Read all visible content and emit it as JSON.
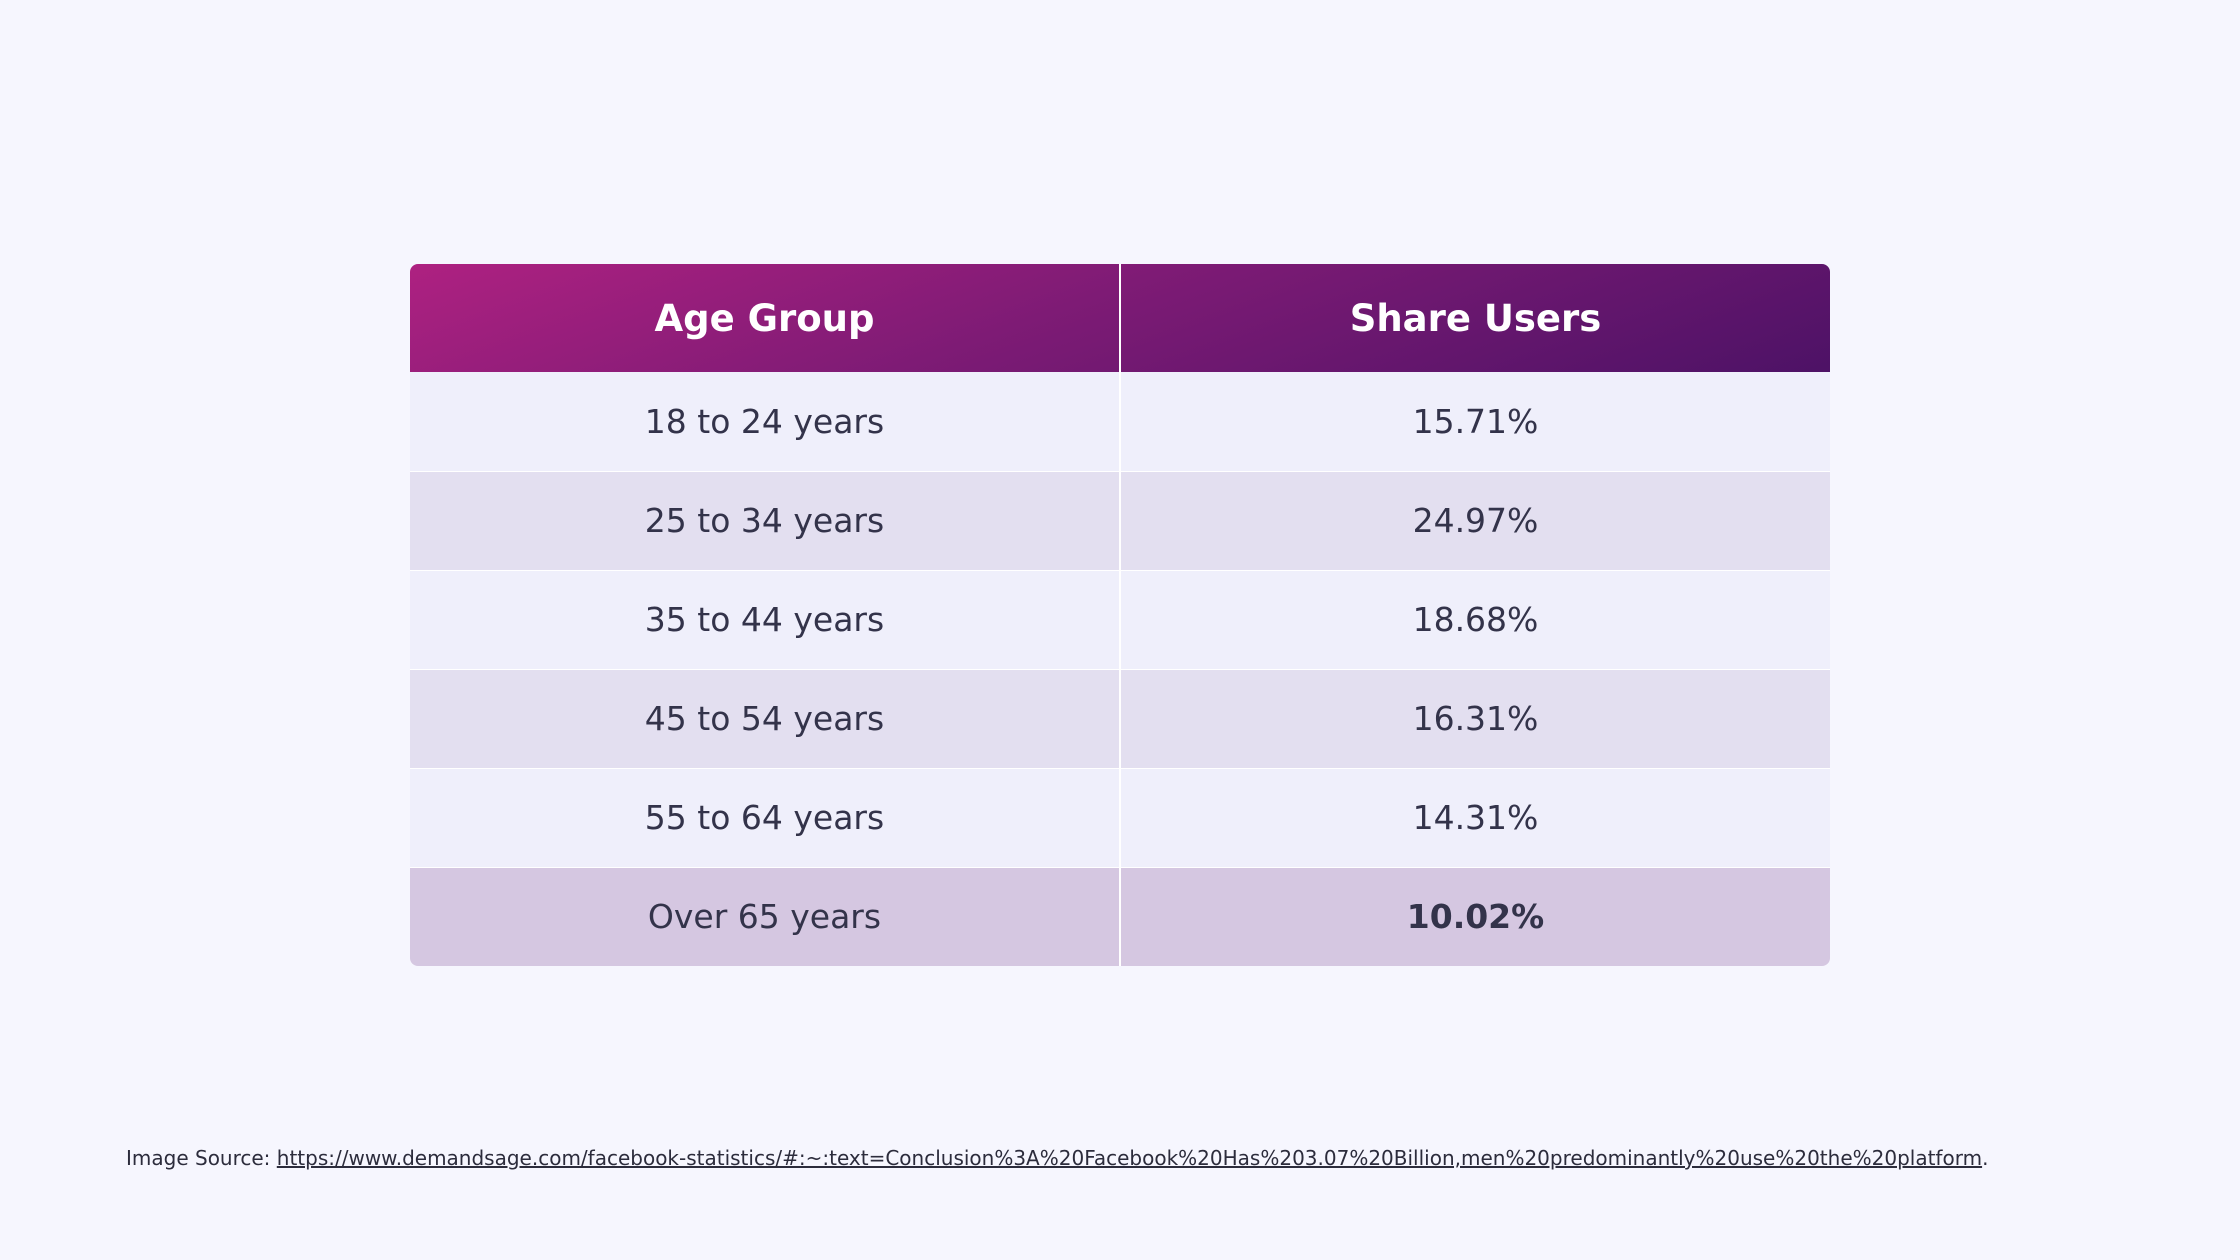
{
  "chart_data": {
    "type": "table",
    "columns": [
      "Age Group",
      "Share Users"
    ],
    "rows": [
      {
        "age_group": "18 to 24 years",
        "share": "15.71%"
      },
      {
        "age_group": "25 to 34 years",
        "share": "24.97%"
      },
      {
        "age_group": "35 to 44 years",
        "share": "18.68%"
      },
      {
        "age_group": "45 to 54 years",
        "share": "16.31%"
      },
      {
        "age_group": "55 to 64 years",
        "share": "14.31%"
      },
      {
        "age_group": "Over 65 years",
        "share": "10.02%"
      }
    ]
  },
  "source": {
    "label": "Image Source: ",
    "url": "https://www.demandsage.com/facebook-statistics/#:~:text=Conclusion%3A%20Facebook%20Has%203.07%20Billion,men%20predominantly%20use%20the%20platform",
    "suffix": "."
  },
  "colors": {
    "header_gradient_start": "#ae2181",
    "header_gradient_end": "#4d1266",
    "row_light": "#efeffb",
    "row_dark": "#e3dff0",
    "row_highlight": "#d5c7e1"
  }
}
